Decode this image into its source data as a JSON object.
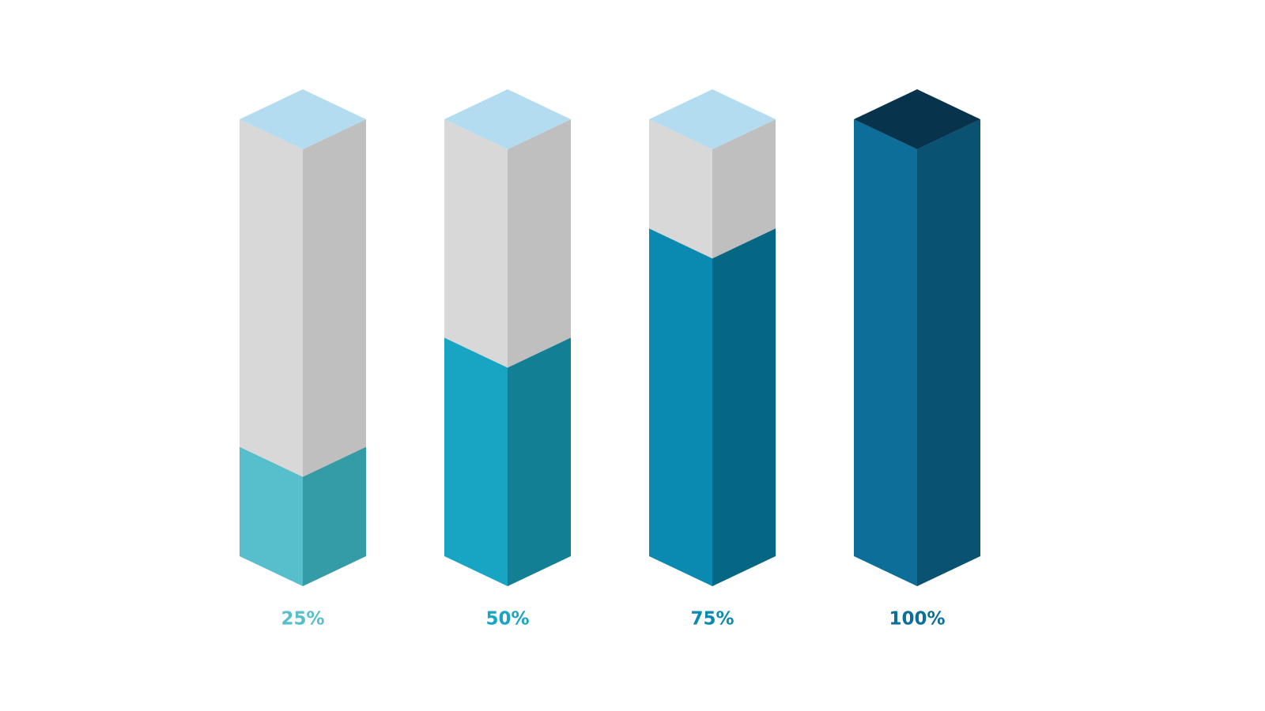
{
  "chart_data": {
    "type": "bar",
    "values": [
      25,
      50,
      75,
      100
    ],
    "value_labels": [
      "25%",
      "50%",
      "75%",
      "100%"
    ],
    "ylim": [
      0,
      100
    ],
    "colors": [
      "#56bfcb",
      "#18a5c4",
      "#0a8ab0",
      "#0d6e99"
    ],
    "shade_colors": [
      "#339ca6",
      "#127f95",
      "#066785",
      "#0a5272"
    ],
    "top_colors": [
      "#b3dcf0",
      "#b3dcf0",
      "#b3dcf0",
      "#08334c"
    ],
    "track_colors": [
      "#d8d8d8",
      "#bfbfbf"
    ]
  }
}
